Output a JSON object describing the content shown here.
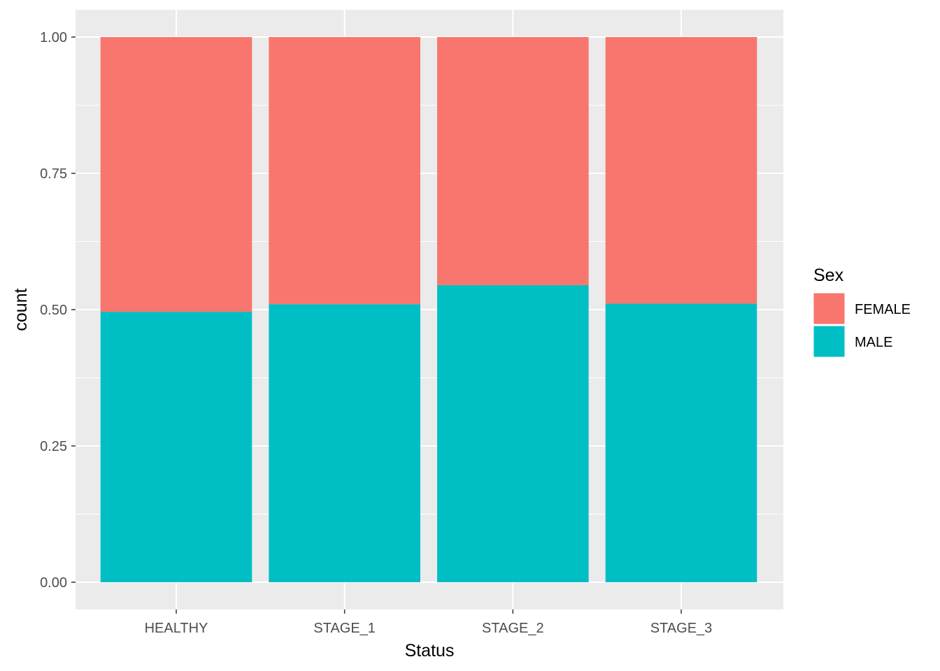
{
  "chart_data": {
    "type": "bar",
    "stacked": true,
    "position": "fill",
    "xlabel": "Status",
    "ylabel": "count",
    "categories": [
      "HEALTHY",
      "STAGE_1",
      "STAGE_2",
      "STAGE_3"
    ],
    "ylim": [
      0,
      1
    ],
    "yticks": [
      0,
      0.25,
      0.5,
      0.75,
      1
    ],
    "ytick_labels": [
      "0.00",
      "0.25",
      "0.50",
      "0.75",
      "1.00"
    ],
    "series": [
      {
        "name": "MALE",
        "color": "#00BFC4",
        "values": [
          0.496,
          0.51,
          0.545,
          0.511
        ]
      },
      {
        "name": "FEMALE",
        "color": "#F8766D",
        "values": [
          0.504,
          0.49,
          0.455,
          0.489
        ]
      }
    ],
    "legend": {
      "title": "Sex",
      "placement": "right",
      "entries": [
        {
          "label": "FEMALE",
          "color": "#F8766D"
        },
        {
          "label": "MALE",
          "color": "#00BFC4"
        }
      ]
    },
    "grid": true,
    "panel_background": "#EBEBEB"
  }
}
